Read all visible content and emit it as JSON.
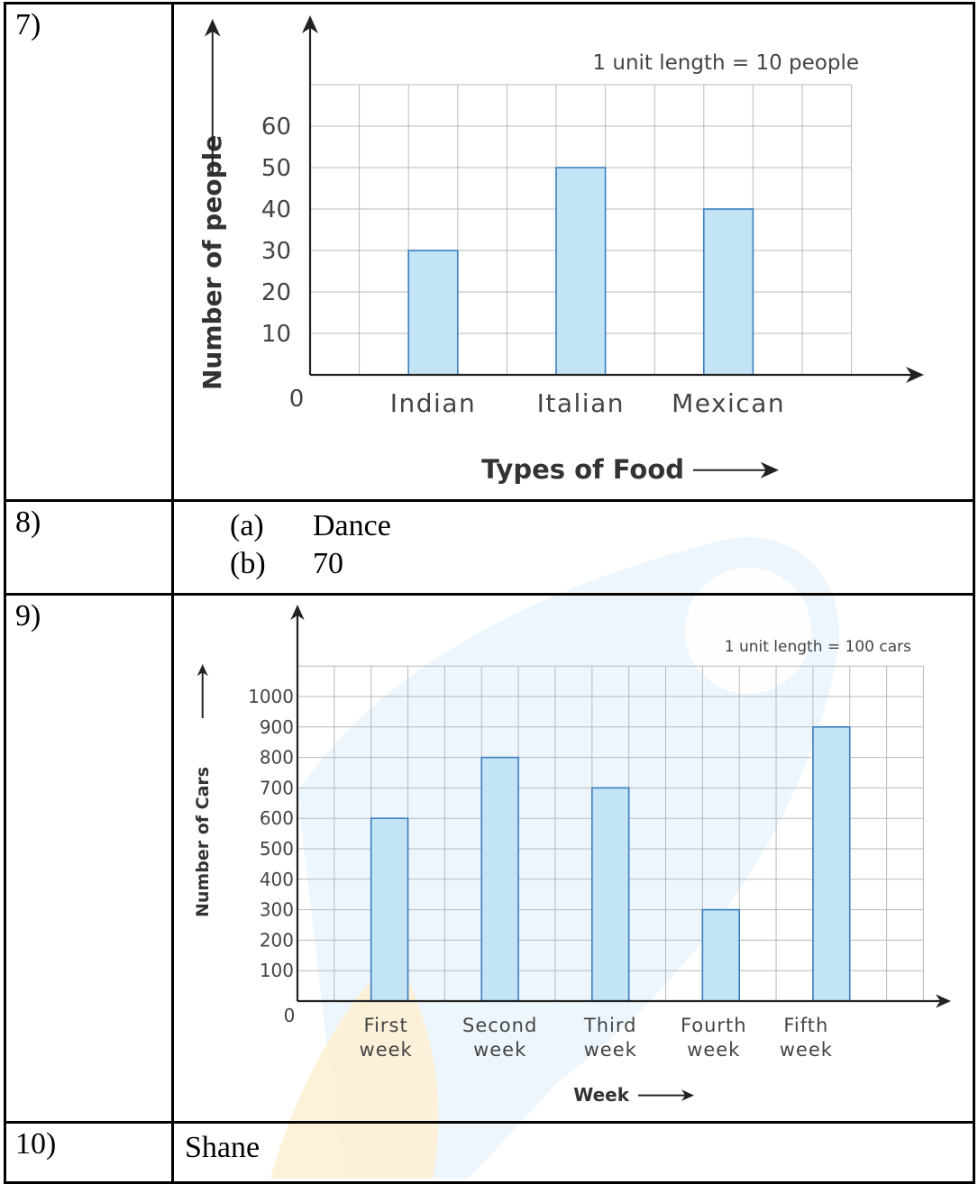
{
  "rows": {
    "q7": {
      "label": "7)"
    },
    "q8": {
      "label": "8)",
      "parts": [
        {
          "letter": "(a)",
          "answer": "Dance"
        },
        {
          "letter": "(b)",
          "answer": "70"
        }
      ]
    },
    "q9": {
      "label": "9)"
    },
    "q10": {
      "label": "10)",
      "answer": "Shane"
    }
  },
  "chart_data": [
    {
      "type": "bar",
      "categories": [
        "Indian",
        "Italian",
        "Mexican"
      ],
      "values": [
        30,
        50,
        40
      ],
      "title": "",
      "annotation": "1 unit length = 10 people",
      "xlabel": "Types of Food",
      "ylabel": "Number of people",
      "yticks": [
        10,
        20,
        30,
        40,
        50,
        60
      ],
      "origin_label": "0",
      "ylim": [
        0,
        70
      ],
      "grid": true,
      "bar_color": "#c3e4f5",
      "bar_stroke": "#3b7dbf"
    },
    {
      "type": "bar",
      "categories": [
        [
          "First",
          "week"
        ],
        [
          "Second",
          "week"
        ],
        [
          "Third",
          "week"
        ],
        [
          "Fourth",
          "week"
        ],
        [
          "Fifth",
          "week"
        ]
      ],
      "values": [
        600,
        800,
        700,
        300,
        900
      ],
      "title": "",
      "annotation": "1 unit length = 100 cars",
      "xlabel": "Week",
      "ylabel": "Number of Cars",
      "yticks": [
        100,
        200,
        300,
        400,
        500,
        600,
        700,
        800,
        900,
        1000
      ],
      "origin_label": "0",
      "ylim": [
        0,
        1100
      ],
      "grid": true,
      "bar_color": "#c3e4f5",
      "bar_stroke": "#3b7dbf"
    }
  ]
}
